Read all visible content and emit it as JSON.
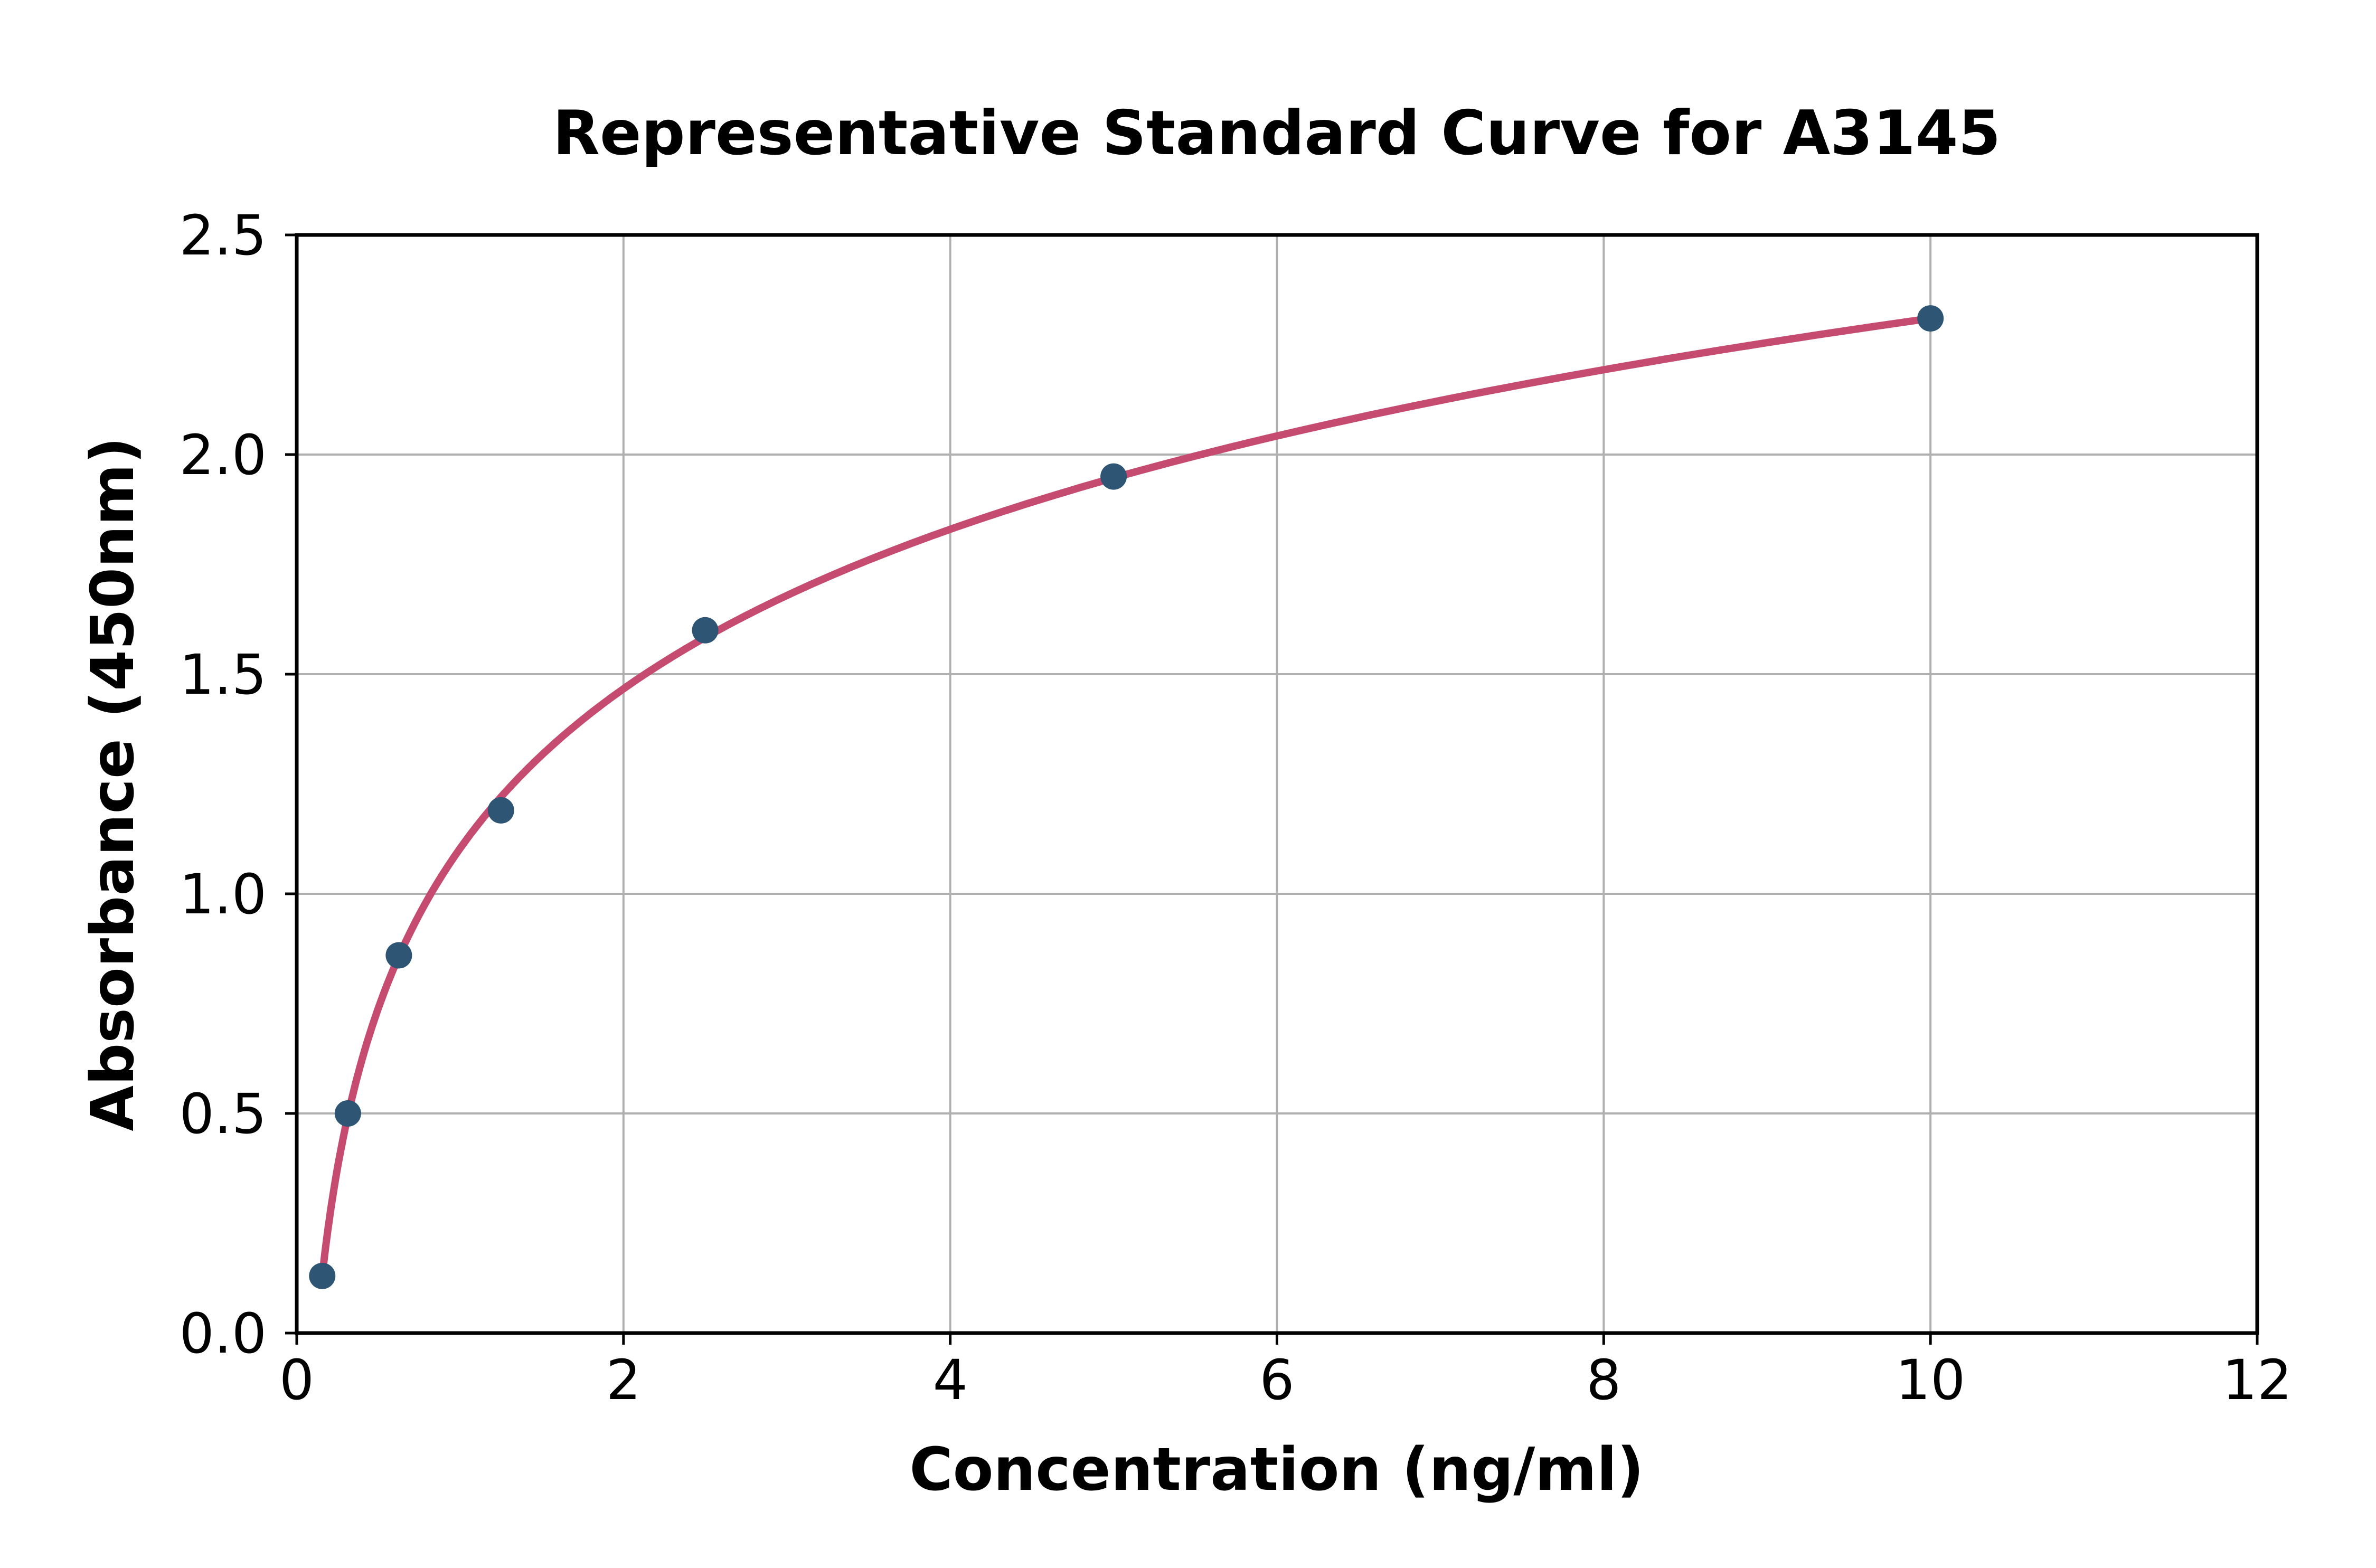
{
  "chart_data": {
    "type": "scatter",
    "title": "Representative Standard Curve for A3145",
    "xlabel": "Concentration (ng/ml)",
    "ylabel": "Absorbance (450nm)",
    "xlim": [
      0,
      12
    ],
    "ylim": [
      0.0,
      2.5
    ],
    "x_ticks": [
      0,
      2,
      4,
      6,
      8,
      10,
      12
    ],
    "x_tick_labels": [
      "0",
      "2",
      "4",
      "6",
      "8",
      "10",
      "12"
    ],
    "y_ticks": [
      0.0,
      0.5,
      1.0,
      1.5,
      2.0,
      2.5
    ],
    "y_tick_labels": [
      "0.0",
      "0.5",
      "1.0",
      "1.5",
      "2.0",
      "2.5"
    ],
    "grid": true,
    "legend": "none",
    "series": [
      {
        "name": "standard-points",
        "kind": "scatter",
        "x": [
          0.156,
          0.313,
          0.625,
          1.25,
          2.5,
          5,
          10
        ],
        "y": [
          0.13,
          0.5,
          0.86,
          1.19,
          1.6,
          1.95,
          2.31
        ]
      },
      {
        "name": "fit-curve",
        "kind": "line",
        "fit": "logarithmic",
        "equation": "y = a + b*ln(x)",
        "a": 1.1035,
        "b": 0.524,
        "x_start": 0.156,
        "x_end": 10
      }
    ],
    "colors": {
      "point": "#2e5573",
      "curve": "#c54b70",
      "grid": "#b0b0b0",
      "axis": "#000000",
      "background": "#ffffff"
    }
  }
}
